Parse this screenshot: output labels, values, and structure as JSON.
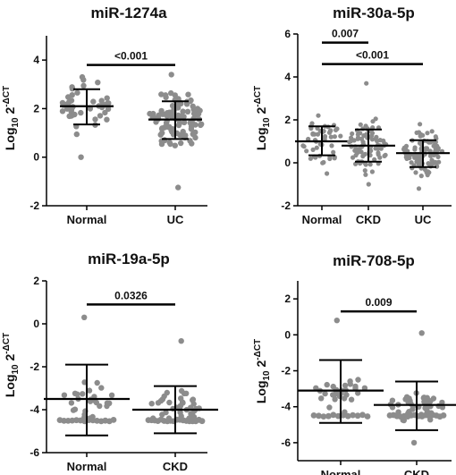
{
  "point_color": "#8c8c8c",
  "chart_data": [
    {
      "type": "scatter",
      "title": "miR-1274a",
      "ylabel": "Log10 2-ΔCT",
      "ylabel_parts": [
        "Log",
        "10",
        " 2",
        "-ΔCT"
      ],
      "ylim": [
        -2,
        5
      ],
      "yticks": [
        -2,
        0,
        2,
        4
      ],
      "categories": [
        "Normal",
        "UC"
      ],
      "groups": [
        {
          "name": "Normal",
          "mean": 2.1,
          "sd_low": 1.35,
          "sd_high": 2.8,
          "n": 45,
          "min": 0.0,
          "max": 3.3,
          "spread": 0.4
        },
        {
          "name": "UC",
          "mean": 1.55,
          "sd_low": 0.75,
          "sd_high": 2.3,
          "n": 110,
          "min": -1.25,
          "max": 3.4,
          "spread": 0.55
        }
      ],
      "significance": [
        {
          "from": 0,
          "to": 1,
          "y": 3.8,
          "label": "<0.001"
        }
      ]
    },
    {
      "type": "scatter",
      "title": "miR-30a-5p",
      "ylabel": "Log10 2-ΔCT",
      "ylabel_parts": [
        "Log",
        "10",
        " 2",
        "-ΔCT"
      ],
      "ylim": [
        -2,
        6
      ],
      "yticks": [
        -2,
        0,
        2,
        4,
        6
      ],
      "categories": [
        "Normal",
        "CKD",
        "UC"
      ],
      "groups": [
        {
          "name": "Normal",
          "mean": 1.0,
          "sd_low": 0.35,
          "sd_high": 1.7,
          "n": 50,
          "min": -0.5,
          "max": 2.2,
          "spread": 0.45
        },
        {
          "name": "CKD",
          "mean": 0.8,
          "sd_low": 0.05,
          "sd_high": 1.55,
          "n": 85,
          "min": -1.0,
          "max": 3.7,
          "spread": 0.5
        },
        {
          "name": "UC",
          "mean": 0.45,
          "sd_low": -0.2,
          "sd_high": 1.05,
          "n": 105,
          "min": -1.2,
          "max": 1.8,
          "spread": 0.45
        }
      ],
      "significance": [
        {
          "from": 0,
          "to": 1,
          "y": 5.6,
          "label": "0.007"
        },
        {
          "from": 0,
          "to": 2,
          "y": 4.6,
          "label": "<0.001"
        }
      ]
    },
    {
      "type": "scatter",
      "title": "miR-19a-5p",
      "ylabel": "Log10 2-ΔCT",
      "ylabel_parts": [
        "Log",
        "10",
        " 2",
        "-ΔCT"
      ],
      "ylim": [
        -6,
        2
      ],
      "yticks": [
        -6,
        -4,
        -2,
        0,
        2
      ],
      "categories": [
        "Normal",
        "CKD"
      ],
      "groups": [
        {
          "name": "Normal",
          "mean": -3.5,
          "sd_low": -5.2,
          "sd_high": -1.9,
          "n": 28,
          "floor": -4.5,
          "floor_n": 14,
          "min": -4.4,
          "max": 0.3,
          "spread": 0.35
        },
        {
          "name": "CKD",
          "mean": -4.0,
          "sd_low": -5.1,
          "sd_high": -2.9,
          "n": 40,
          "floor": -4.5,
          "floor_n": 18,
          "min": -4.4,
          "max": -0.8,
          "spread": 0.4
        }
      ],
      "significance": [
        {
          "from": 0,
          "to": 1,
          "y": 0.9,
          "label": "0.0326"
        }
      ]
    },
    {
      "type": "scatter",
      "title": "miR-708-5p",
      "ylabel": "Log10 2-ΔCT",
      "ylabel_parts": [
        "Log",
        "10",
        " 2",
        "-ΔCT"
      ],
      "ylim": [
        -7,
        3
      ],
      "yticks": [
        -6,
        -4,
        -2,
        0,
        2
      ],
      "categories": [
        "Normal",
        "CKD"
      ],
      "groups": [
        {
          "name": "Normal",
          "mean": -3.1,
          "sd_low": -4.9,
          "sd_high": -1.4,
          "n": 30,
          "floor": -4.5,
          "floor_n": 12,
          "min": -4.3,
          "max": 0.8,
          "spread": 0.35
        },
        {
          "name": "CKD",
          "mean": -3.9,
          "sd_low": -5.3,
          "sd_high": -2.6,
          "n": 42,
          "floor": -4.5,
          "floor_n": 16,
          "min": -6.0,
          "max": 0.1,
          "spread": 0.4
        }
      ],
      "significance": [
        {
          "from": 0,
          "to": 1,
          "y": 1.3,
          "label": "0.009"
        }
      ]
    }
  ]
}
